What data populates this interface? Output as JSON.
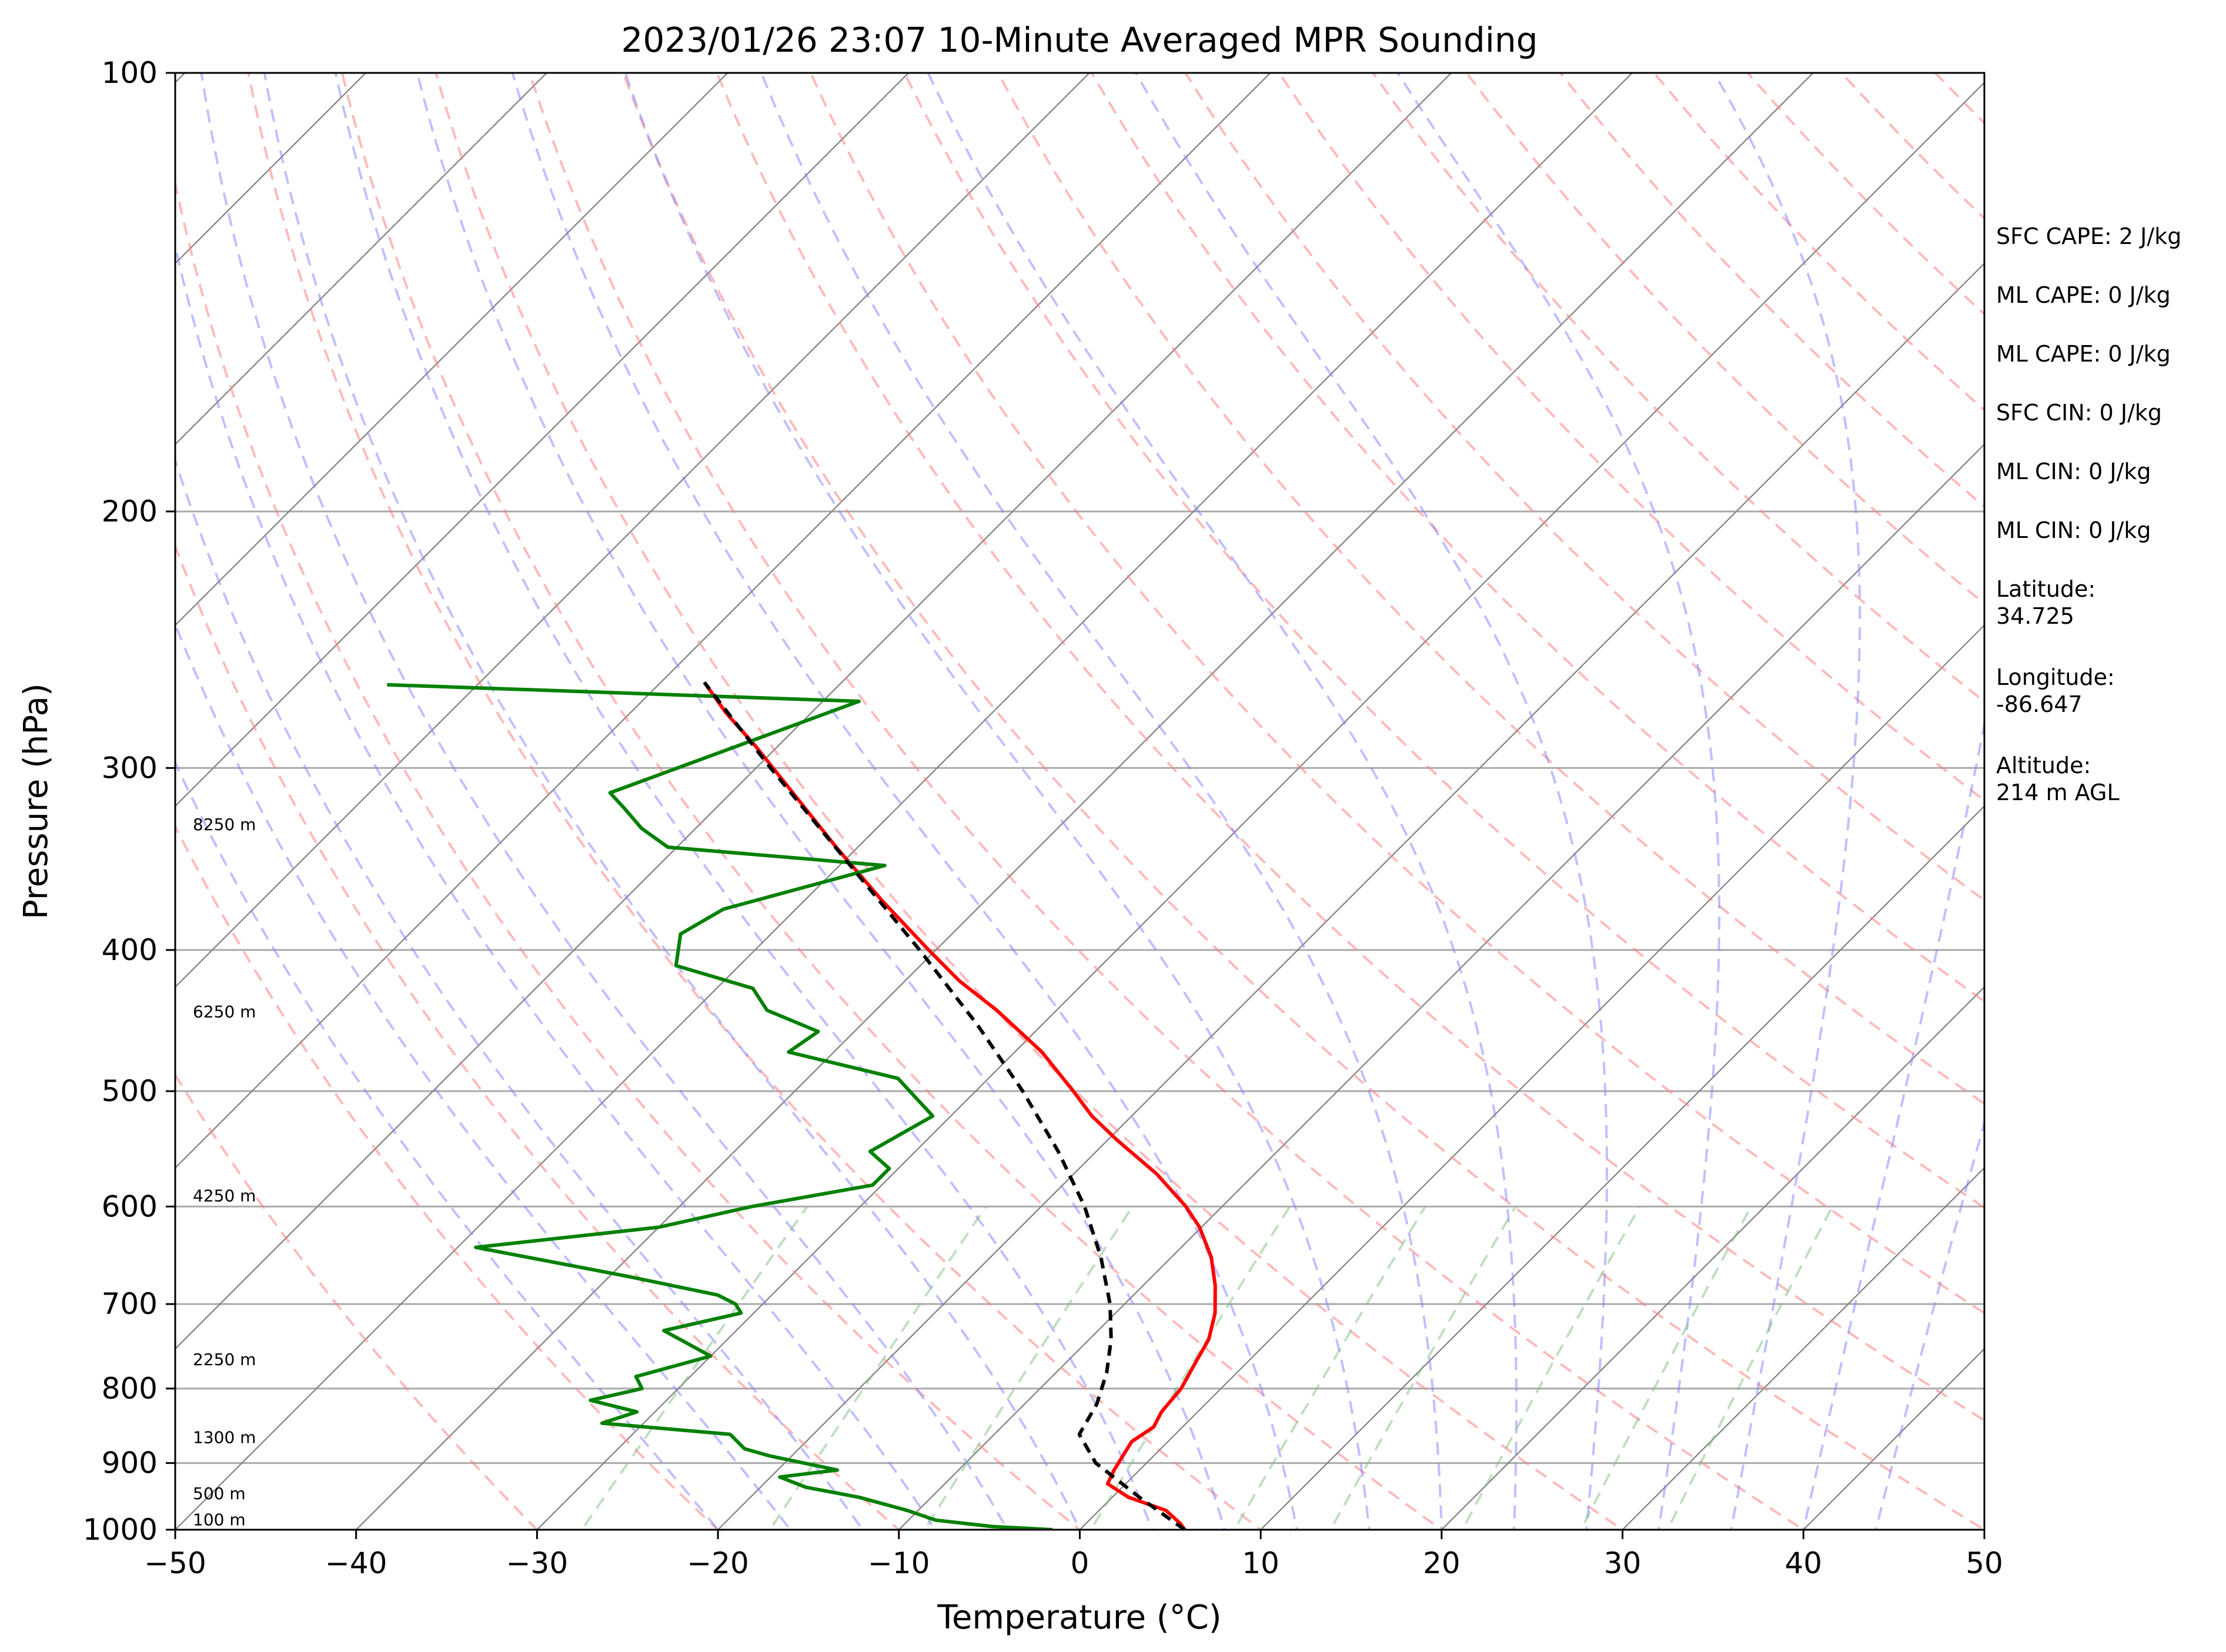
{
  "chart_data": {
    "type": "line",
    "title": "2023/01/26 23:07 10-Minute Averaged MPR Sounding",
    "xlabel": "Temperature (°C)",
    "ylabel": "Pressure (hPa)",
    "xlim": [
      -50,
      50
    ],
    "ylim": [
      1000,
      100
    ],
    "y_scale": "log",
    "skew_t": true,
    "grid": true,
    "x_ticks": [
      "−50",
      "−40",
      "−30",
      "−20",
      "−10",
      "0",
      "10",
      "20",
      "30",
      "40",
      "50"
    ],
    "x_tick_values": [
      -50,
      -40,
      -30,
      -20,
      -10,
      0,
      10,
      20,
      30,
      40,
      50
    ],
    "y_ticks": [
      "1000",
      "900",
      "800",
      "700",
      "600",
      "500",
      "400",
      "300",
      "200",
      "100"
    ],
    "y_tick_values": [
      1000,
      900,
      800,
      700,
      600,
      500,
      400,
      300,
      200,
      100
    ],
    "series": [
      {
        "role": "temperature",
        "color": "#ff0000",
        "p": [
          1000,
          990,
          970,
          950,
          930,
          910,
          890,
          870,
          850,
          830,
          800,
          770,
          740,
          710,
          680,
          650,
          620,
          600,
          570,
          540,
          520,
          500,
          470,
          440,
          420,
          400,
          370,
          340,
          310,
          290,
          275,
          262
        ],
        "t": [
          5.8,
          5.2,
          3.7,
          0.9,
          -1.0,
          -1.4,
          -1.7,
          -2.0,
          -1.6,
          -2.0,
          -2.2,
          -2.8,
          -3.4,
          -4.5,
          -6.0,
          -7.8,
          -10.1,
          -12.0,
          -15.4,
          -19.5,
          -22.2,
          -24.6,
          -28.5,
          -33.3,
          -37.0,
          -40.4,
          -45.7,
          -51.2,
          -57.0,
          -61.2,
          -64.7,
          -67.6
        ]
      },
      {
        "role": "dewpoint",
        "color": "#008000",
        "p": [
          1000,
          995,
          985,
          970,
          950,
          935,
          920,
          910,
          890,
          880,
          860,
          845,
          830,
          815,
          800,
          785,
          760,
          730,
          710,
          700,
          690,
          670,
          640,
          620,
          600,
          580,
          565,
          550,
          520,
          490,
          470,
          455,
          440,
          425,
          410,
          390,
          375,
          350,
          340,
          330,
          320,
          312,
          270,
          263
        ],
        "t": [
          -1.5,
          -5.0,
          -8.5,
          -10.6,
          -14.0,
          -17.5,
          -19.5,
          -16.7,
          -21.2,
          -23.0,
          -24.6,
          -32.3,
          -31.0,
          -34.2,
          -32.0,
          -33.0,
          -30.0,
          -34.0,
          -30.7,
          -31.5,
          -33.0,
          -39.0,
          -49.0,
          -40.0,
          -36.0,
          -30.5,
          -30.5,
          -32.5,
          -31.0,
          -35.0,
          -42.5,
          -42.0,
          -46.0,
          -48.0,
          -53.5,
          -55.0,
          -54.0,
          -47.5,
          -60.5,
          -63.0,
          -65.0,
          -66.7,
          -58.0,
          -85.0
        ]
      },
      {
        "role": "parcel",
        "color": "#000000",
        "style": "dashed",
        "p": [
          1000,
          950,
          900,
          860,
          820,
          780,
          740,
          700,
          650,
          600,
          550,
          500,
          450,
          400,
          350,
          300,
          262
        ],
        "t": [
          5.8,
          1.5,
          -2.8,
          -5.3,
          -6.0,
          -7.2,
          -8.8,
          -10.8,
          -13.9,
          -17.6,
          -22.1,
          -27.4,
          -33.6,
          -40.9,
          -49.4,
          -59.2,
          -67.6
        ]
      }
    ],
    "height_labels": [
      {
        "label": "100 m",
        "p": 993
      },
      {
        "label": "500 m",
        "p": 953
      },
      {
        "label": "1300 m",
        "p": 872
      },
      {
        "label": "2250 m",
        "p": 771
      },
      {
        "label": "4250 m",
        "p": 595
      },
      {
        "label": "6250 m",
        "p": 445
      },
      {
        "label": "8250 m",
        "p": 331
      }
    ],
    "annotations": [
      "SFC CAPE: 2 J/kg",
      "ML CAPE: 0 J/kg",
      "ML CAPE: 0 J/kg",
      "SFC CIN: 0 J/kg",
      "ML CIN: 0 J/kg",
      "ML CIN: 0 J/kg",
      "Latitude:\n34.725",
      "Longitude:\n-86.647",
      "Altitude:\n214 m AGL"
    ],
    "colors": {
      "isotherm": "#808080",
      "isobar": "#a0a0a0",
      "dry_adiabat": "#ff8080",
      "moist_adiabat": "#8080ff",
      "mixing_ratio": "#80c080"
    }
  }
}
